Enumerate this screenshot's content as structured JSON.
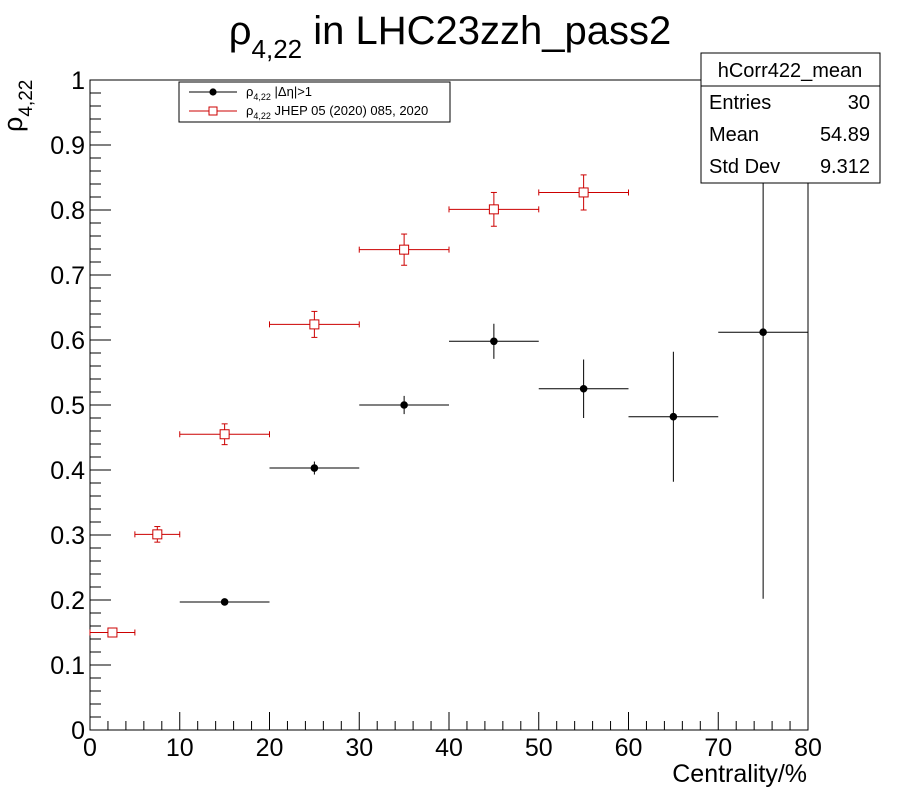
{
  "chart_data": {
    "type": "scatter",
    "title": {
      "main": "ρ",
      "sub": "4,22",
      "rest": " in LHC23zzh_pass2"
    },
    "ylabel": {
      "main": "ρ",
      "sub": "4,22"
    },
    "xlabel": "Centrality/%",
    "xlim": [
      0,
      80
    ],
    "ylim": [
      0,
      1
    ],
    "x_ticks": [
      "0",
      "10",
      "20",
      "30",
      "40",
      "50",
      "60",
      "70",
      "80"
    ],
    "y_ticks": [
      "0",
      "0.1",
      "0.2",
      "0.3",
      "0.4",
      "0.5",
      "0.6",
      "0.7",
      "0.8",
      "0.9",
      "1"
    ],
    "grid": false,
    "legend_position": "top-left",
    "series": [
      {
        "name": {
          "main": "ρ",
          "sub": "4,22",
          "rest": " |Δη|>1"
        },
        "color": "#000000",
        "marker": "filled-circle",
        "points": [
          {
            "x": 15,
            "y": 0.197,
            "xerr": 5,
            "yerr": 0.004
          },
          {
            "x": 25,
            "y": 0.403,
            "xerr": 5,
            "yerr": 0.01
          },
          {
            "x": 35,
            "y": 0.5,
            "xerr": 5,
            "yerr": 0.014
          },
          {
            "x": 45,
            "y": 0.598,
            "xerr": 5,
            "yerr": 0.027
          },
          {
            "x": 55,
            "y": 0.525,
            "xerr": 5,
            "yerr": 0.045
          },
          {
            "x": 65,
            "y": 0.482,
            "xerr": 5,
            "yerr": 0.1
          },
          {
            "x": 75,
            "y": 0.612,
            "xerr": 5,
            "yerr": 0.41
          }
        ]
      },
      {
        "name": {
          "main": "ρ",
          "sub": "4,22",
          "rest": " JHEP 05 (2020) 085, 2020"
        },
        "color": "#cc0000",
        "marker": "open-square",
        "points": [
          {
            "x": 2.5,
            "y": 0.15,
            "xerr": 2.5,
            "yerr": 0.006
          },
          {
            "x": 7.5,
            "y": 0.301,
            "xerr": 2.5,
            "yerr": 0.012
          },
          {
            "x": 15,
            "y": 0.455,
            "xerr": 5,
            "yerr": 0.016
          },
          {
            "x": 25,
            "y": 0.624,
            "xerr": 5,
            "yerr": 0.02
          },
          {
            "x": 35,
            "y": 0.739,
            "xerr": 5,
            "yerr": 0.024
          },
          {
            "x": 45,
            "y": 0.801,
            "xerr": 5,
            "yerr": 0.026
          },
          {
            "x": 55,
            "y": 0.827,
            "xerr": 5,
            "yerr": 0.027
          }
        ]
      }
    ],
    "stats_box": {
      "title": "hCorr422_mean",
      "rows": [
        {
          "label": "Entries",
          "value": "30"
        },
        {
          "label": "Mean",
          "value": "54.89"
        },
        {
          "label": "Std Dev",
          "value": "9.312"
        }
      ]
    }
  }
}
